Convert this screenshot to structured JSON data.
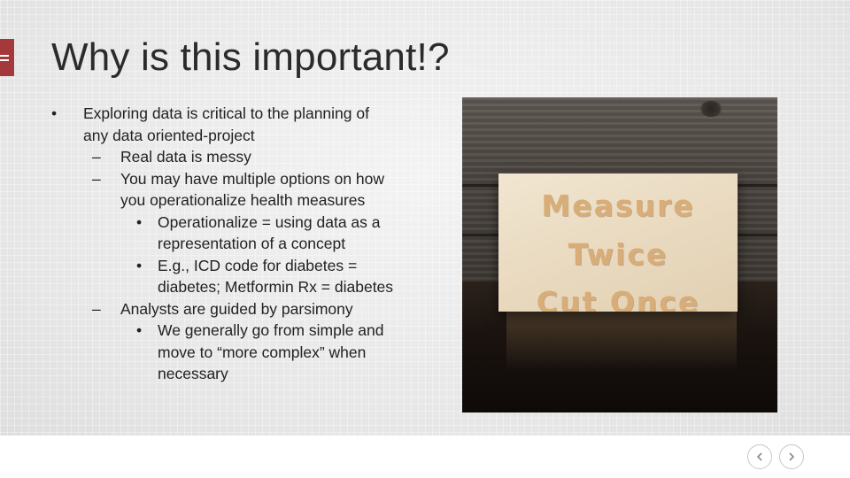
{
  "slide": {
    "title": "Why is this important!?",
    "bullets": [
      {
        "level": 1,
        "marker": "•",
        "text": "Exploring data is critical to the planning of"
      },
      {
        "level": 1,
        "marker": "",
        "text": "any data oriented-project"
      },
      {
        "level": 2,
        "marker": "–",
        "text": "Real data is messy"
      },
      {
        "level": 2,
        "marker": "–",
        "text": "You may have multiple options on how"
      },
      {
        "level": 2,
        "marker": "",
        "text": "you operationalize health measures"
      },
      {
        "level": 3,
        "marker": "•",
        "text": "Operationalize = using data as a"
      },
      {
        "level": 3,
        "marker": "",
        "text": "representation of a concept"
      },
      {
        "level": 3,
        "marker": "•",
        "text": "E.g., ICD code for diabetes ="
      },
      {
        "level": 3,
        "marker": "",
        "text": "diabetes; Metformin Rx = diabetes"
      },
      {
        "level": 2,
        "marker": "–",
        "text": "Analysts are guided by parsimony"
      },
      {
        "level": 3,
        "marker": "•",
        "text": "We generally go from simple and"
      },
      {
        "level": 3,
        "marker": "",
        "text": "move to “more complex” when"
      },
      {
        "level": 3,
        "marker": "",
        "text": "necessary"
      }
    ],
    "photo": {
      "sign_words": [
        "Measure",
        "Twice",
        "Cut Once"
      ]
    }
  },
  "controls": {
    "menu_icon": "hamburger-icon",
    "prev_icon": "chevron-left-icon",
    "next_icon": "chevron-right-icon"
  },
  "colors": {
    "menu_tab": "#a5383a",
    "title_text": "#2b2b2b"
  }
}
